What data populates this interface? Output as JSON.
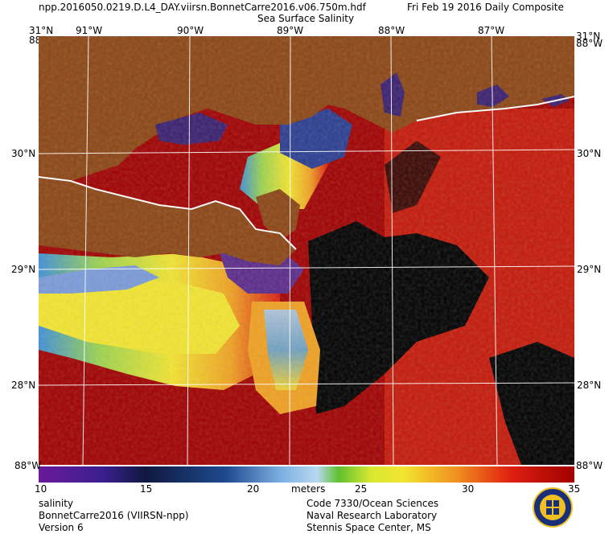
{
  "header": {
    "filename": "npp.2016050.0219.D.L4_DAY.viirsn.BonnetCarre2016.v06.750m.hdf",
    "date": "Fri Feb 19 2016 Daily Composite",
    "product": "Sea Surface Salinity"
  },
  "axes": {
    "top_lon_labels": [
      "31°N",
      "91°W",
      "90°W",
      "89°W",
      "88°W",
      "87°W"
    ],
    "top_corner_left_overlay": "88°W",
    "top_corner_right": "31°N",
    "top_corner_right_overlay": "88°W",
    "left_lat_labels": [
      "30°N",
      "29°N",
      "28°N"
    ],
    "right_lat_labels": [
      "30°N",
      "29°N",
      "28°N"
    ],
    "bottom_corner_left": "88°W",
    "bottom_corner_right": "88°W"
  },
  "colorbar": {
    "ticks": [
      "10",
      "15",
      "20",
      "25",
      "30",
      "35"
    ],
    "unit": "meters",
    "min": 10,
    "max": 35
  },
  "footer": {
    "left": [
      "salinity",
      "BonnetCarre2016 (VIIRSN-npp)",
      "Version 6"
    ],
    "right": [
      "Code 7330/Ocean Sciences",
      "Naval Research Laboratory",
      "Stennis Space Center, MS"
    ]
  },
  "colors": {
    "land": "#8b4513",
    "ocean_high": "#a00000",
    "background": "#ffffff"
  },
  "icons": {
    "seal": "navy-seal-icon"
  }
}
